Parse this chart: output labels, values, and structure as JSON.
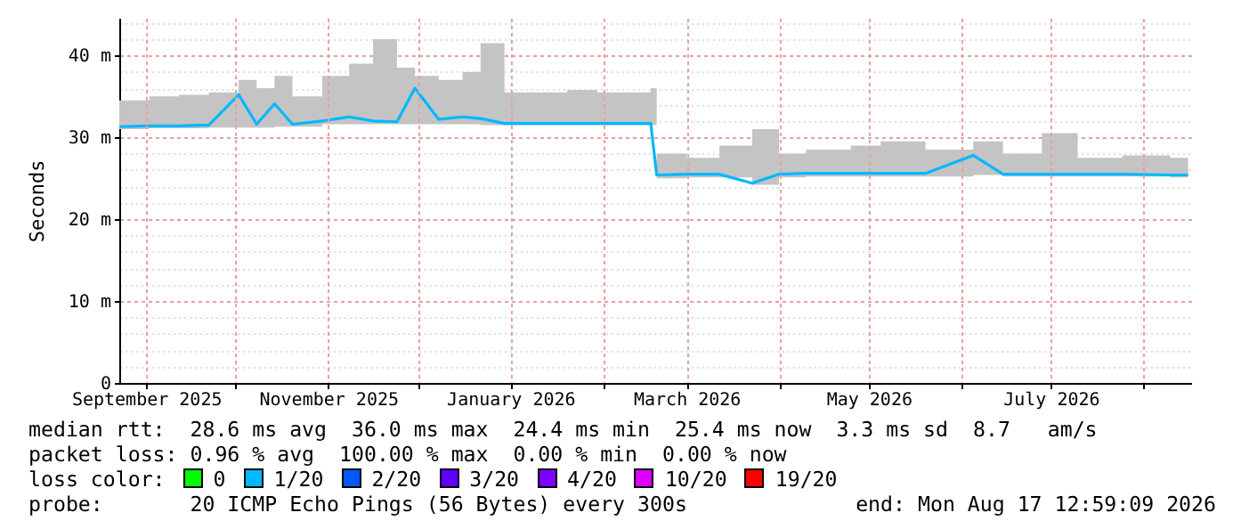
{
  "chart_data": {
    "type": "line",
    "ylabel": "Seconds",
    "x": [
      "2025-08-23",
      "2025-09-02",
      "2025-09-12",
      "2025-09-22",
      "2025-10-02",
      "2025-10-08",
      "2025-10-14",
      "2025-10-20",
      "2025-10-30",
      "2025-11-08",
      "2025-11-16",
      "2025-11-24",
      "2025-11-30",
      "2025-12-08",
      "2025-12-16",
      "2025-12-22",
      "2025-12-30",
      "2026-01-10",
      "2026-01-20",
      "2026-01-30",
      "2026-02-10",
      "2026-02-17",
      "2026-02-19",
      "2026-03-01",
      "2026-03-12",
      "2026-03-23",
      "2026-04-01",
      "2026-04-10",
      "2026-04-25",
      "2026-05-05",
      "2026-05-20",
      "2026-06-05",
      "2026-06-15",
      "2026-06-28",
      "2026-07-10",
      "2026-07-25",
      "2026-08-10",
      "2026-08-16"
    ],
    "series": [
      {
        "color": "#00b8ff",
        "line_style": "solid",
        "values": [
          31.3,
          31.4,
          31.4,
          31.5,
          35.2,
          31.6,
          34.1,
          31.6,
          32.0,
          32.5,
          32.0,
          31.9,
          36.0,
          32.2,
          32.5,
          32.3,
          31.7,
          31.7,
          31.7,
          31.7,
          31.7,
          31.7,
          25.4,
          25.5,
          25.5,
          24.4,
          25.5,
          25.6,
          25.6,
          25.6,
          25.6,
          27.8,
          25.5,
          25.5,
          25.5,
          25.5,
          25.4,
          25.4
        ],
        "lower": [
          31.0,
          31.1,
          31.1,
          31.2,
          31.2,
          31.2,
          31.3,
          31.3,
          31.6,
          31.6,
          31.6,
          31.6,
          31.6,
          31.6,
          31.6,
          31.5,
          31.5,
          31.5,
          31.5,
          31.5,
          31.5,
          31.5,
          25.0,
          25.1,
          25.1,
          24.2,
          25.1,
          25.2,
          25.2,
          25.2,
          25.2,
          25.4,
          25.2,
          25.2,
          25.2,
          25.2,
          25.1,
          25.1
        ],
        "upper": [
          34.5,
          35.0,
          35.2,
          35.5,
          37.0,
          36.0,
          37.5,
          35.0,
          37.5,
          39.0,
          42.0,
          38.5,
          37.5,
          37.0,
          38.0,
          41.5,
          35.5,
          35.5,
          35.8,
          35.5,
          35.5,
          36.0,
          28.0,
          27.5,
          29.0,
          31.0,
          28.0,
          28.5,
          29.0,
          29.5,
          28.5,
          29.5,
          28.0,
          30.5,
          27.5,
          27.8,
          27.5,
          27.5
        ]
      },
      {
        "name": "0",
        "color": "#00ff00",
        "values": [
          null,
          null,
          null,
          null,
          null,
          null,
          null,
          null,
          null,
          null,
          null,
          null,
          null,
          null,
          null,
          null,
          null,
          null,
          null,
          null,
          null,
          null,
          null,
          null,
          null,
          null,
          null,
          null,
          null,
          null,
          null,
          null,
          null,
          null,
          null,
          null,
          null,
          null
        ]
      },
      {
        "name": "1/20",
        "color": "#00b8ff",
        "values": [
          null,
          null,
          null,
          null,
          null,
          null,
          null,
          null,
          null,
          null,
          null,
          null,
          null,
          null,
          null,
          null,
          null,
          null,
          null,
          null,
          null,
          null,
          null,
          null,
          null,
          null,
          null,
          null,
          null,
          null,
          null,
          null,
          null,
          null,
          null,
          null,
          null,
          null
        ]
      },
      {
        "name": "2/20",
        "color": "#0059ff",
        "values": [
          null,
          null,
          null,
          null,
          null,
          null,
          null,
          null,
          null,
          null,
          null,
          null,
          null,
          null,
          null,
          null,
          null,
          null,
          null,
          null,
          null,
          null,
          null,
          null,
          null,
          null,
          null,
          null,
          null,
          null,
          null,
          null,
          null,
          null,
          null,
          null,
          null,
          null
        ]
      },
      {
        "name": "3/20",
        "color": "#5e00ff",
        "values": [
          null,
          null,
          null,
          null,
          null,
          null,
          null,
          null,
          null,
          null,
          null,
          null,
          null,
          null,
          null,
          null,
          null,
          null,
          null,
          null,
          null,
          null,
          null,
          null,
          null,
          null,
          null,
          null,
          null,
          null,
          null,
          null,
          null,
          null,
          null,
          null,
          null,
          null
        ]
      },
      {
        "name": "4/20",
        "color": "#7e00ff",
        "values": [
          null,
          null,
          null,
          null,
          null,
          null,
          null,
          null,
          null,
          null,
          null,
          null,
          null,
          null,
          null,
          null,
          null,
          null,
          null,
          null,
          null,
          null,
          null,
          null,
          null,
          null,
          null,
          null,
          null,
          null,
          null,
          null,
          null,
          null,
          null,
          null,
          null,
          null
        ]
      },
      {
        "name": "10/20",
        "color": "#dd00ff",
        "values": [
          null,
          null,
          null,
          null,
          null,
          null,
          null,
          null,
          null,
          null,
          null,
          null,
          null,
          null,
          null,
          null,
          null,
          null,
          null,
          null,
          null,
          null,
          null,
          null,
          null,
          null,
          null,
          null,
          null,
          null,
          null,
          null,
          null,
          null,
          null,
          null,
          null,
          null
        ]
      },
      {
        "name": "19/20",
        "color": "#ff0000",
        "values": [
          null,
          null,
          null,
          null,
          null,
          null,
          null,
          null,
          null,
          null,
          null,
          null,
          null,
          null,
          null,
          null,
          null,
          null,
          null,
          null,
          null,
          null,
          null,
          null,
          null,
          null,
          null,
          null,
          null,
          null,
          null,
          null,
          null,
          null,
          null,
          null,
          null,
          null
        ]
      }
    ],
    "legend": "bottom",
    "legend_title": "loss color:",
    "xlim": [
      "2025-08-23",
      "2026-08-17"
    ],
    "xticks": [
      {
        "value": "2025-09-01",
        "label": "September 2025"
      },
      {
        "value": "2025-10-01",
        "label": null
      },
      {
        "value": "2025-11-01",
        "label": "November 2025"
      },
      {
        "value": "2025-12-01",
        "label": null
      },
      {
        "value": "2026-01-01",
        "label": "January 2026"
      },
      {
        "value": "2026-02-01",
        "label": null
      },
      {
        "value": "2026-03-01",
        "label": "March 2026"
      },
      {
        "value": "2026-04-01",
        "label": null
      },
      {
        "value": "2026-05-01",
        "label": "May 2026"
      },
      {
        "value": "2026-06-01",
        "label": null
      },
      {
        "value": "2026-07-01",
        "label": "July 2026"
      },
      {
        "value": "2026-08-01",
        "label": null
      }
    ],
    "ylim": [
      0,
      44.6
    ],
    "yticks": [
      0,
      {
        "value": 10,
        "label": "10 m"
      },
      {
        "value": 20,
        "label": "20 m"
      },
      {
        "value": 30,
        "label": "30 m"
      },
      {
        "value": 40,
        "label": "40 m"
      },
      {
        "value": 2,
        "label": null
      },
      {
        "value": 4,
        "label": null
      },
      {
        "value": 6,
        "label": null
      },
      {
        "value": 8,
        "label": null
      },
      {
        "value": 12,
        "label": null
      },
      {
        "value": 14,
        "label": null
      },
      {
        "value": 16,
        "label": null
      },
      {
        "value": 18,
        "label": null
      },
      {
        "value": 22,
        "label": null
      },
      {
        "value": 24,
        "label": null
      },
      {
        "value": 26,
        "label": null
      },
      {
        "value": 28,
        "label": null
      },
      {
        "value": 32,
        "label": null
      },
      {
        "value": 34,
        "label": null
      },
      {
        "value": 36,
        "label": null
      },
      {
        "value": 38,
        "label": null
      },
      {
        "value": 42,
        "label": null
      },
      {
        "value": 44,
        "label": null
      }
    ],
    "grid": true,
    "annotations": [
      "median rtt:  28.6 ms avg  36.0 ms max  24.4 ms min  25.4 ms now  3.3 ms sd  8.7   am/s",
      "packet loss: 0.96 % avg  100.00 % max  0.00 % min  0.00 % now",
      "probe:       20 ICMP Echo Pings (56 Bytes) every 300s",
      "end: Mon Aug 17 12:59:09 2026"
    ]
  }
}
